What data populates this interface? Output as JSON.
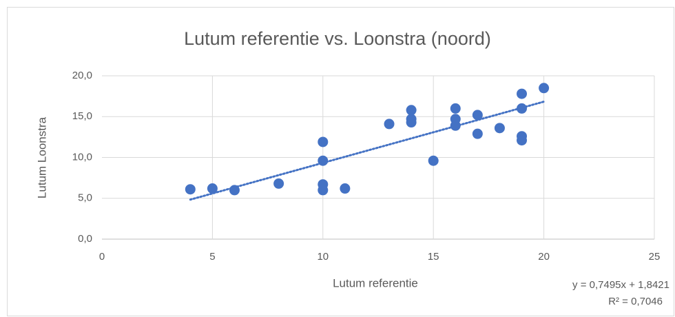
{
  "chart_data": {
    "type": "scatter",
    "title": "Lutum referentie vs. Loonstra (noord)",
    "x_label": "Lutum referentie",
    "y_label": "Lutum Loonstra",
    "series": [
      {
        "color": "#4472c4",
        "x": [
          4,
          5,
          6,
          8,
          10,
          10,
          10,
          10,
          11,
          13,
          14,
          14,
          14,
          15,
          16,
          16,
          16,
          17,
          17,
          18,
          19,
          19,
          19,
          19,
          20
        ],
        "values": [
          6.1,
          6.2,
          6.0,
          6.8,
          11.9,
          9.6,
          6.7,
          6.0,
          6.2,
          14.1,
          15.8,
          14.7,
          14.3,
          9.6,
          16.0,
          14.7,
          13.9,
          15.2,
          12.9,
          13.6,
          17.8,
          16.0,
          12.6,
          12.1,
          18.5
        ]
      }
    ],
    "trendline": {
      "equation": "y = 0,7495x + 1,8421",
      "r2_label": "R² = 0,7046",
      "slope": 0.7495,
      "intercept": 1.8421,
      "color": "#4472c4"
    },
    "xlim": [
      0,
      25
    ],
    "xticks": [
      0,
      5,
      10,
      15,
      20,
      25
    ],
    "ylim": [
      0,
      20
    ],
    "yticks": [
      {
        "value": 0,
        "label": "0,0"
      },
      {
        "value": 5,
        "label": "5,0"
      },
      {
        "value": 10,
        "label": "10,0"
      },
      {
        "value": 15,
        "label": "15,0"
      },
      {
        "value": 20,
        "label": "20,0"
      }
    ],
    "grid": true
  }
}
